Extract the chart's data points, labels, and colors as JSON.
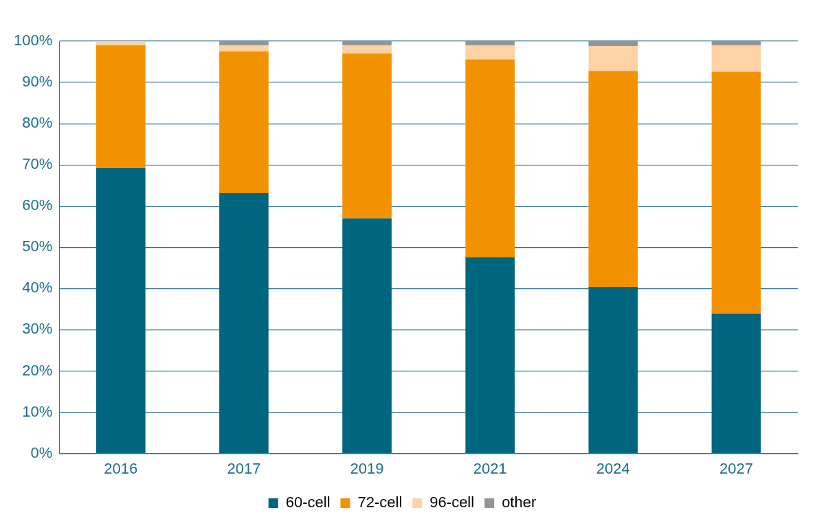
{
  "chart_data": {
    "type": "bar",
    "stacked": true,
    "categories": [
      "2016",
      "2017",
      "2019",
      "2021",
      "2024",
      "2027"
    ],
    "series": [
      {
        "name": "60-cell",
        "color": "#00657f",
        "values": [
          69.2,
          63.2,
          57.0,
          47.6,
          40.4,
          33.9
        ]
      },
      {
        "name": "72-cell",
        "color": "#f39200",
        "values": [
          29.8,
          34.3,
          40.0,
          48.0,
          52.4,
          58.7
        ]
      },
      {
        "name": "96-cell",
        "color": "#fdd2a5",
        "values": [
          1.0,
          1.5,
          2.0,
          3.4,
          6.0,
          6.4
        ]
      },
      {
        "name": "other",
        "color": "#959595",
        "values": [
          0,
          1.0,
          1.0,
          1.0,
          1.2,
          1.0
        ]
      }
    ],
    "ylim": [
      0,
      100
    ],
    "yticks": [
      {
        "value": 0,
        "label": "0%"
      },
      {
        "value": 10,
        "label": "10%"
      },
      {
        "value": 20,
        "label": "20%"
      },
      {
        "value": 30,
        "label": "30%"
      },
      {
        "value": 40,
        "label": "40%"
      },
      {
        "value": 50,
        "label": "50%"
      },
      {
        "value": 60,
        "label": "60%"
      },
      {
        "value": 70,
        "label": "70%"
      },
      {
        "value": 80,
        "label": "80%"
      },
      {
        "value": 90,
        "label": "90%"
      },
      {
        "value": 100,
        "label": "100%"
      }
    ],
    "grid": "y",
    "legend": "bottom"
  }
}
